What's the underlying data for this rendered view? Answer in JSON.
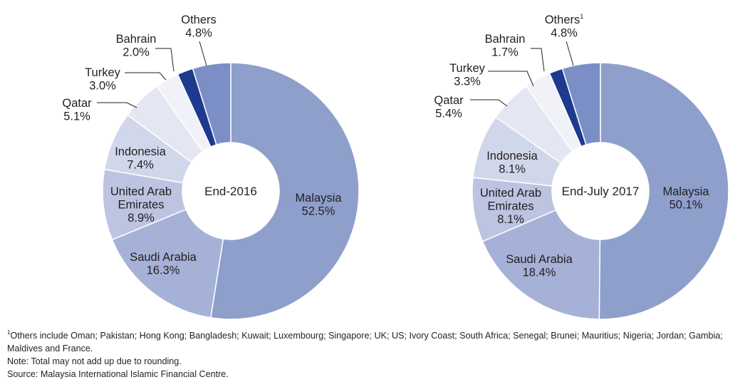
{
  "chart_data": [
    {
      "type": "pie",
      "subtype": "donut",
      "center_label": "End-2016",
      "categories": [
        "Malaysia",
        "Saudi Arabia",
        "United Arab Emirates",
        "Indonesia",
        "Qatar",
        "Turkey",
        "Bahrain",
        "Others"
      ],
      "values": [
        52.5,
        16.3,
        8.9,
        7.4,
        5.1,
        3.0,
        2.0,
        4.8
      ],
      "value_labels": [
        "52.5%",
        "16.3%",
        "8.9%",
        "7.4%",
        "5.1%",
        "3.0%",
        "2.0%",
        "4.8%"
      ],
      "colors": [
        "#8e9fcc",
        "#a6b1d7",
        "#bcc4e1",
        "#d1d7eb",
        "#e4e7f2",
        "#f1f2f8",
        "#1e3a8e",
        "#7b8fc6"
      ]
    },
    {
      "type": "pie",
      "subtype": "donut",
      "center_label": "End-July 2017",
      "categories": [
        "Malaysia",
        "Saudi Arabia",
        "United Arab Emirates",
        "Indonesia",
        "Qatar",
        "Turkey",
        "Bahrain",
        "Others"
      ],
      "values": [
        50.1,
        18.4,
        8.1,
        8.1,
        5.4,
        3.3,
        1.7,
        4.8
      ],
      "value_labels": [
        "50.1%",
        "18.4%",
        "8.1%",
        "8.1%",
        "5.4%",
        "3.3%",
        "1.7%",
        "4.8%"
      ],
      "others_footnote_mark": "1",
      "colors": [
        "#8e9fcc",
        "#a6b1d7",
        "#bcc4e1",
        "#d1d7eb",
        "#e4e7f2",
        "#f1f2f8",
        "#1e3a8e",
        "#7b8fc6"
      ]
    }
  ],
  "display_labels": {
    "uae": [
      "United Arab",
      "Emirates"
    ]
  },
  "notes": {
    "footnote_mark": "1",
    "footnote_line1": "Others include Oman; Pakistan; Hong Kong; Bangladesh; Kuwait; Luxembourg; Singapore; UK; US; Ivory Coast; South Africa; Senegal; Brunei; Mauritius; Nigeria; Jordan; Gambia;",
    "footnote_line2": "Maldives and France.",
    "note": "Note: Total may not add up due to rounding.",
    "source": "Source: Malaysia International Islamic Financial Centre."
  }
}
